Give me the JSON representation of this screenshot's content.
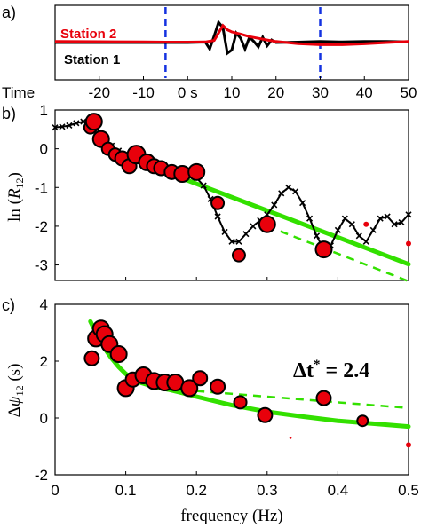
{
  "chart_data": [
    {
      "type": "line",
      "panel_label": "a)",
      "x_axis_title": "Time",
      "x_ticks": [
        -20,
        -10,
        0,
        10,
        20,
        30,
        40,
        50
      ],
      "x_tick_labels": [
        "-20",
        "-10",
        "0 s",
        "10",
        "20",
        "30",
        "40",
        "50"
      ],
      "xlim": [
        -30,
        50
      ],
      "window_markers": [
        -5,
        30
      ],
      "series": [
        {
          "name": "Station 2",
          "color": "#e8000b",
          "x": [
            -30,
            -20,
            -10,
            -5,
            0,
            4,
            6,
            7,
            8,
            9,
            10,
            11,
            12,
            14,
            16,
            18,
            20,
            25,
            30,
            35,
            40,
            45,
            50
          ],
          "y": [
            0.05,
            0.04,
            0.03,
            0.02,
            0.02,
            0.03,
            0.1,
            0.45,
            0.8,
            0.6,
            0.5,
            0.45,
            0.4,
            0.28,
            0.2,
            0.12,
            0.05,
            -0.05,
            -0.1,
            -0.1,
            -0.06,
            0.0,
            0.05
          ]
        },
        {
          "name": "Station 1",
          "color": "#000000",
          "x": [
            -30,
            -20,
            -10,
            -5,
            0,
            4,
            5,
            6,
            7,
            8,
            9,
            10,
            11,
            12,
            13,
            14,
            15,
            16,
            17,
            18,
            19,
            20,
            25,
            30,
            35,
            40,
            45,
            50
          ],
          "y": [
            0.0,
            0.0,
            0.0,
            0.0,
            0.0,
            0.02,
            -0.3,
            0.3,
            0.95,
            0.7,
            -0.5,
            -0.35,
            0.45,
            0.2,
            -0.3,
            0.25,
            0.05,
            -0.2,
            0.25,
            -0.15,
            0.12,
            0.0,
            0.02,
            0.05,
            0.03,
            0.05,
            0.05,
            0.03
          ]
        }
      ]
    },
    {
      "type": "scatter",
      "panel_label": "b)",
      "ylabel": "ln (R12)",
      "xlim": [
        0,
        0.5
      ],
      "ylim": [
        -3.4,
        1
      ],
      "y_ticks": [
        1,
        0,
        -1,
        -2,
        -3
      ],
      "y_tick_labels": [
        "1",
        "0",
        "-1",
        "-2",
        "-3"
      ],
      "spectral_ratio_curve": {
        "color": "#000000",
        "x": [
          0.0,
          0.01,
          0.02,
          0.03,
          0.04,
          0.05,
          0.06,
          0.07,
          0.08,
          0.09,
          0.1,
          0.12,
          0.14,
          0.16,
          0.18,
          0.2,
          0.21,
          0.22,
          0.23,
          0.24,
          0.25,
          0.26,
          0.27,
          0.28,
          0.29,
          0.3,
          0.31,
          0.32,
          0.33,
          0.34,
          0.35,
          0.36,
          0.37,
          0.38,
          0.39,
          0.4,
          0.41,
          0.42,
          0.43,
          0.44,
          0.45,
          0.46,
          0.47,
          0.48,
          0.49,
          0.5
        ],
        "y": [
          0.55,
          0.57,
          0.6,
          0.66,
          0.7,
          0.68,
          0.5,
          0.25,
          0.08,
          -0.05,
          -0.15,
          -0.3,
          -0.45,
          -0.55,
          -0.65,
          -0.75,
          -0.95,
          -1.3,
          -1.75,
          -2.15,
          -2.4,
          -2.4,
          -2.2,
          -2.0,
          -1.85,
          -1.7,
          -1.45,
          -1.15,
          -1.0,
          -1.1,
          -1.4,
          -1.8,
          -2.25,
          -2.6,
          -2.5,
          -2.1,
          -1.8,
          -1.95,
          -2.25,
          -2.4,
          -2.1,
          -1.8,
          -1.75,
          -1.95,
          -1.9,
          -1.7
        ]
      },
      "fit_line": {
        "color": "#33e000",
        "x": [
          0.11,
          0.5
        ],
        "y": [
          -0.28,
          -2.98
        ]
      },
      "fit_line_dashed": {
        "color": "#33e000",
        "x": [
          0.3,
          0.5
        ],
        "y": [
          -2.0,
          -3.42
        ]
      },
      "points": {
        "color": "#e8000b",
        "x": [
          0.05,
          0.055,
          0.065,
          0.075,
          0.085,
          0.095,
          0.105,
          0.115,
          0.13,
          0.14,
          0.15,
          0.165,
          0.18,
          0.2,
          0.23,
          0.26,
          0.3,
          0.38,
          0.44,
          0.5
        ],
        "y": [
          0.55,
          0.7,
          0.25,
          0.0,
          -0.15,
          -0.25,
          -0.45,
          -0.15,
          -0.35,
          -0.45,
          -0.5,
          -0.6,
          -0.65,
          -0.6,
          -1.4,
          -2.75,
          -1.95,
          -2.6,
          -1.95,
          -2.45
        ],
        "sizes": [
          7,
          9,
          9,
          7,
          7,
          8,
          8,
          10,
          9,
          8,
          8,
          8,
          9,
          9,
          7,
          7,
          9,
          9,
          3,
          3
        ]
      }
    },
    {
      "type": "scatter",
      "panel_label": "c)",
      "ylabel": "Δψ12 (s)",
      "xlabel": "frequency (Hz)",
      "xlim": [
        0,
        0.5
      ],
      "ylim": [
        -2,
        4
      ],
      "x_ticks": [
        0,
        0.1,
        0.2,
        0.3,
        0.4,
        0.5
      ],
      "x_tick_labels": [
        "0",
        "0.1",
        "0.2",
        "0.3",
        "0.4",
        "0.5"
      ],
      "y_ticks": [
        4,
        2,
        0,
        -2
      ],
      "y_tick_labels": [
        "4",
        "2",
        "0",
        "-2"
      ],
      "annotation": {
        "prefix": "Δt",
        "superscript": "*",
        "equals_value": " = 2.4"
      },
      "fit_curve": {
        "color": "#33e000",
        "x": [
          0.05,
          0.06,
          0.07,
          0.08,
          0.09,
          0.1,
          0.12,
          0.14,
          0.16,
          0.18,
          0.2,
          0.25,
          0.3,
          0.35,
          0.4,
          0.45,
          0.5
        ],
        "y": [
          3.4,
          2.9,
          2.45,
          2.1,
          1.8,
          1.55,
          1.25,
          1.1,
          1.0,
          0.88,
          0.75,
          0.45,
          0.22,
          0.05,
          -0.1,
          -0.2,
          -0.3
        ]
      },
      "fit_curve_dashed": {
        "color": "#33e000",
        "x": [
          0.2,
          0.5
        ],
        "y": [
          0.95,
          0.35
        ]
      },
      "points": {
        "color": "#e8000b",
        "x": [
          0.052,
          0.058,
          0.065,
          0.07,
          0.077,
          0.09,
          0.1,
          0.11,
          0.125,
          0.14,
          0.155,
          0.17,
          0.19,
          0.205,
          0.23,
          0.262,
          0.297,
          0.333,
          0.38,
          0.435,
          0.5
        ],
        "y": [
          2.1,
          2.8,
          3.15,
          2.95,
          2.6,
          2.25,
          1.05,
          1.35,
          1.5,
          1.3,
          1.25,
          1.25,
          1.05,
          1.4,
          1.1,
          0.55,
          0.1,
          -0.7,
          0.7,
          -0.1,
          -0.95
        ],
        "sizes": [
          8,
          9,
          9,
          9,
          9,
          9,
          9,
          8,
          9,
          9,
          9,
          9,
          9,
          8,
          8,
          7,
          8,
          1.3,
          8,
          6,
          3
        ]
      }
    }
  ]
}
